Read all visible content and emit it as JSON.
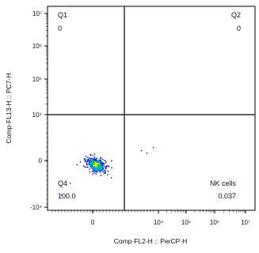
{
  "chart_data": {
    "type": "scatter",
    "xlabel": "Comp-FL2-H :: PerCP-H",
    "ylabel": "Comp-FL13-H :: PC7-H",
    "x_scale": "biexponential",
    "y_scale": "biexponential",
    "x_tick_labels": [
      "0",
      "10⁴",
      "10⁵",
      "10⁶",
      "10⁷"
    ],
    "y_tick_labels": [
      "10⁷",
      "10⁶",
      "10⁵",
      "10⁴",
      "0",
      "-10⁴"
    ],
    "gates": {
      "x_threshold": 2500,
      "y_threshold": 10000
    },
    "quadrants": [
      {
        "name": "Q1",
        "value": "0"
      },
      {
        "name": "Q2",
        "value": "0"
      },
      {
        "name": "Q4",
        "value": "100.0"
      },
      {
        "name": "NK cells",
        "value": "0.037"
      }
    ],
    "population": {
      "center_x": 0,
      "center_y": 0,
      "description_colors": [
        "#0000cc",
        "#00a0ff",
        "#00d060",
        "#f0e000"
      ]
    },
    "grid": false
  }
}
